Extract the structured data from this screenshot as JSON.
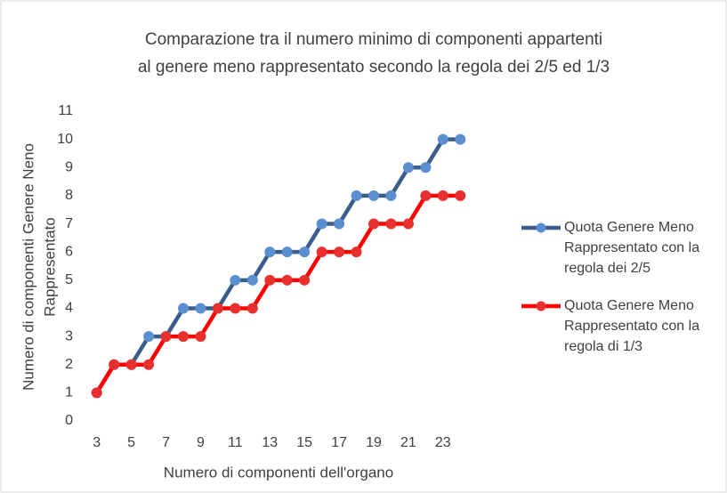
{
  "chart_data": {
    "type": "line",
    "title": [
      "Comparazione tra il numero minimo di componenti appartenti",
      "al genere meno rappresentato secondo la regola dei 2/5 ed 1/3"
    ],
    "x_label": "Numero di componenti dell'organo",
    "y_label": [
      "Numero di componenti Genere Neno",
      "Rappresentato"
    ],
    "x": [
      3,
      4,
      5,
      6,
      7,
      8,
      9,
      10,
      11,
      12,
      13,
      14,
      15,
      16,
      17,
      18,
      19,
      20,
      21,
      22,
      23,
      24
    ],
    "series": [
      {
        "name": "Quota Genere Meno Rappresentato con la regola dei 2/5",
        "color": "#3a5e8c",
        "marker_color": "#5b8fd0",
        "values": [
          1,
          2,
          2,
          3,
          3,
          4,
          4,
          4,
          5,
          5,
          6,
          6,
          6,
          7,
          7,
          8,
          8,
          8,
          9,
          9,
          10,
          10
        ]
      },
      {
        "name": "Quota Genere Meno Rappresentato con la regola di 1/3",
        "color": "#ff0000",
        "marker_color": "#e8302f",
        "values": [
          1,
          2,
          2,
          2,
          3,
          3,
          3,
          4,
          4,
          4,
          5,
          5,
          5,
          6,
          6,
          6,
          7,
          7,
          7,
          8,
          8,
          8
        ]
      }
    ],
    "xlim": [
      2.5,
      24.5
    ],
    "xticks": [
      3,
      5,
      7,
      9,
      11,
      13,
      15,
      17,
      19,
      21,
      23
    ],
    "ylim": [
      0,
      11
    ],
    "yticks": [
      0,
      1,
      2,
      3,
      4,
      5,
      6,
      7,
      8,
      9,
      10,
      11
    ],
    "grid": false,
    "legend": "right"
  }
}
